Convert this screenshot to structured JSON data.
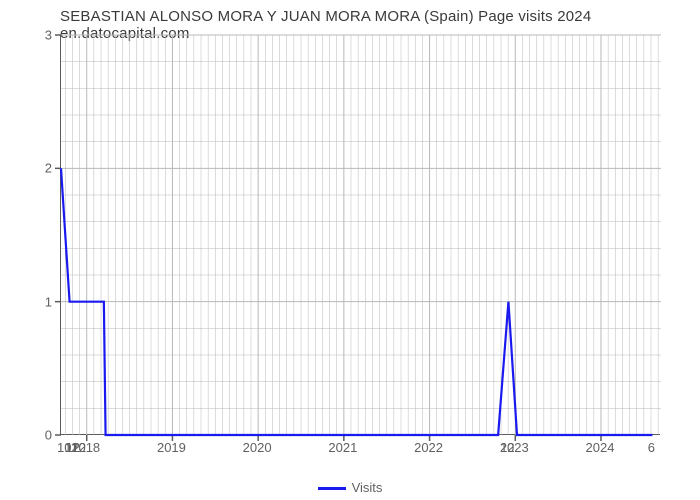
{
  "title": "SEBASTIAN ALONSO MORA Y JUAN MORA MORA (Spain) Page visits 2024 en.datocapital.com",
  "chart": {
    "type": "line",
    "background_color": "#ffffff",
    "grid_color": "#b8b8b8",
    "axis_color": "#5a5a5a",
    "line_color": "#1a1af0",
    "line_width": 2.2,
    "title_color": "#3a3a3a",
    "tick_label_color": "#606060",
    "title_fontsize": 15,
    "tick_fontsize": 13,
    "y": {
      "min": 0,
      "max": 3,
      "ticks": [
        0,
        1,
        2,
        3
      ],
      "minor_per_major": 5
    },
    "x": {
      "min": 2017.7,
      "max": 2024.7,
      "year_ticks": [
        2018,
        2019,
        2020,
        2021,
        2022,
        2023,
        2024
      ],
      "month_ticks_per_year": 12,
      "extra_bottom_labels": [
        {
          "x": 2017.75,
          "text": "10"
        },
        {
          "x": 2017.83,
          "text": "11"
        },
        {
          "x": 2017.85,
          "text": "12"
        },
        {
          "x": 2017.92,
          "text": "12"
        },
        {
          "x": 2022.92,
          "text": "12"
        },
        {
          "x": 2024.6,
          "text": "6"
        }
      ]
    },
    "series": [
      {
        "name": "Visits",
        "color": "#1a1af0",
        "points": [
          [
            2017.7,
            2.0
          ],
          [
            2017.8,
            1.0
          ],
          [
            2018.2,
            1.0
          ],
          [
            2018.22,
            0.0
          ],
          [
            2022.8,
            0.0
          ],
          [
            2022.92,
            1.0
          ],
          [
            2023.02,
            0.0
          ],
          [
            2024.6,
            0.0
          ]
        ]
      }
    ],
    "legend": {
      "label": "Visits",
      "swatch_color": "#1a1af0"
    }
  }
}
